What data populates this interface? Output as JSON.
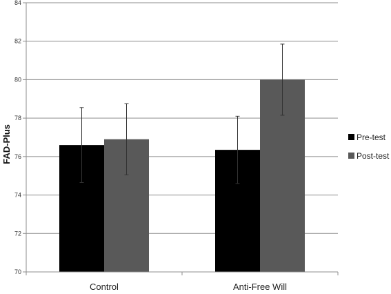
{
  "chart_data": {
    "type": "bar",
    "title": "",
    "xlabel": "",
    "ylabel": "FAD-Plus",
    "ylim": [
      70,
      84
    ],
    "yticks": [
      70,
      72,
      74,
      76,
      78,
      80,
      82,
      84
    ],
    "grid": true,
    "legend_position": "right",
    "categories": [
      "Control",
      "Anti-Free Will"
    ],
    "series": [
      {
        "name": "Pre-test",
        "color": "#000000",
        "values": [
          76.6,
          76.35
        ],
        "errors": [
          1.95,
          1.75
        ]
      },
      {
        "name": "Post-test",
        "color": "#595959",
        "values": [
          76.9,
          80.0
        ],
        "errors": [
          1.85,
          1.85
        ]
      }
    ]
  }
}
